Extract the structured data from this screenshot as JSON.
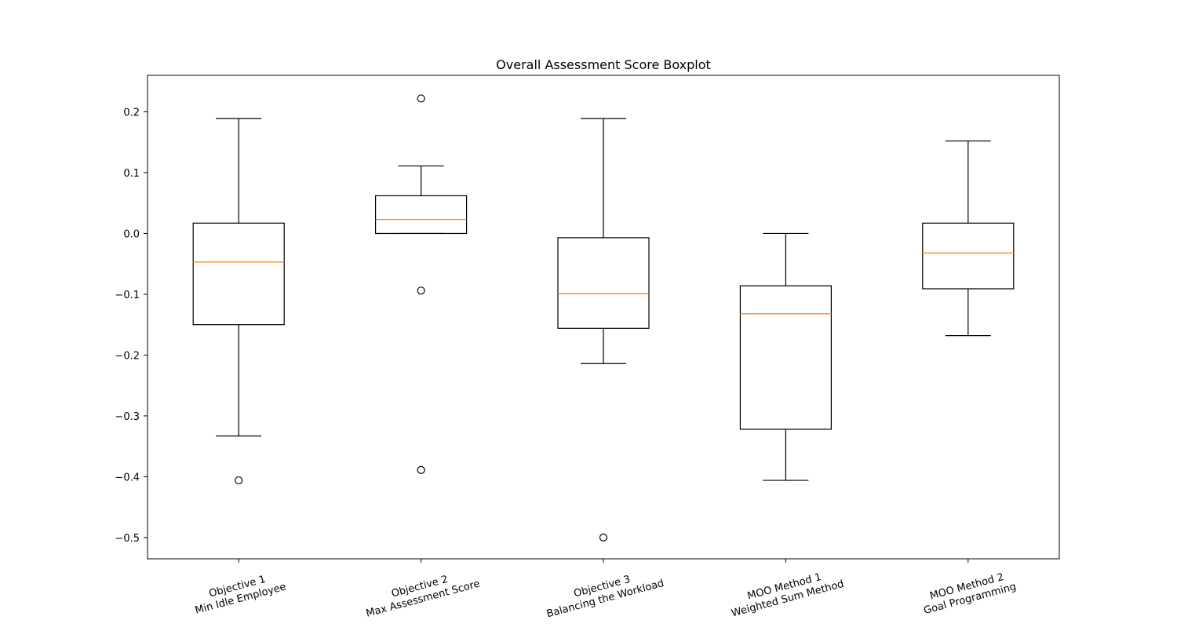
{
  "chart_data": {
    "type": "boxplot",
    "title": "Overall Assessment Score Boxplot",
    "xlabel": "",
    "ylabel": "",
    "ylim": [
      -0.535,
      0.26
    ],
    "yticks": [
      -0.5,
      -0.4,
      -0.3,
      -0.2,
      -0.1,
      0.0,
      0.1,
      0.2
    ],
    "ytick_labels": [
      "−0.5",
      "−0.4",
      "−0.3",
      "−0.2",
      "−0.1",
      "0.0",
      "0.1",
      "0.2"
    ],
    "grid": false,
    "colors": {
      "box": "#000000",
      "median": "#ff7f0e",
      "flier": "#000000"
    },
    "boxes": [
      {
        "label_lines": [
          "Objective 1",
          "Min Idle Employee"
        ],
        "whisker_low": -0.333,
        "q1": -0.15,
        "median": -0.047,
        "q3": 0.017,
        "whisker_high": 0.189,
        "outliers": [
          -0.406
        ]
      },
      {
        "label_lines": [
          "Objective 2",
          "Max Assessment Score"
        ],
        "whisker_low": 0.0,
        "q1": 0.0,
        "median": 0.023,
        "q3": 0.062,
        "whisker_high": 0.111,
        "outliers": [
          0.222,
          -0.094,
          -0.389
        ]
      },
      {
        "label_lines": [
          "Objective 3",
          "Balancing the Workload"
        ],
        "whisker_low": -0.214,
        "q1": -0.156,
        "median": -0.099,
        "q3": -0.007,
        "whisker_high": 0.189,
        "outliers": [
          -0.5
        ]
      },
      {
        "label_lines": [
          "MOO Method 1",
          "Weighted Sum Method"
        ],
        "whisker_low": -0.406,
        "q1": -0.322,
        "median": -0.132,
        "q3": -0.086,
        "whisker_high": 0.0,
        "outliers": []
      },
      {
        "label_lines": [
          "MOO Method 2",
          "Goal Programming"
        ],
        "whisker_low": -0.168,
        "q1": -0.091,
        "median": -0.032,
        "q3": 0.017,
        "whisker_high": 0.152,
        "outliers": []
      }
    ]
  }
}
